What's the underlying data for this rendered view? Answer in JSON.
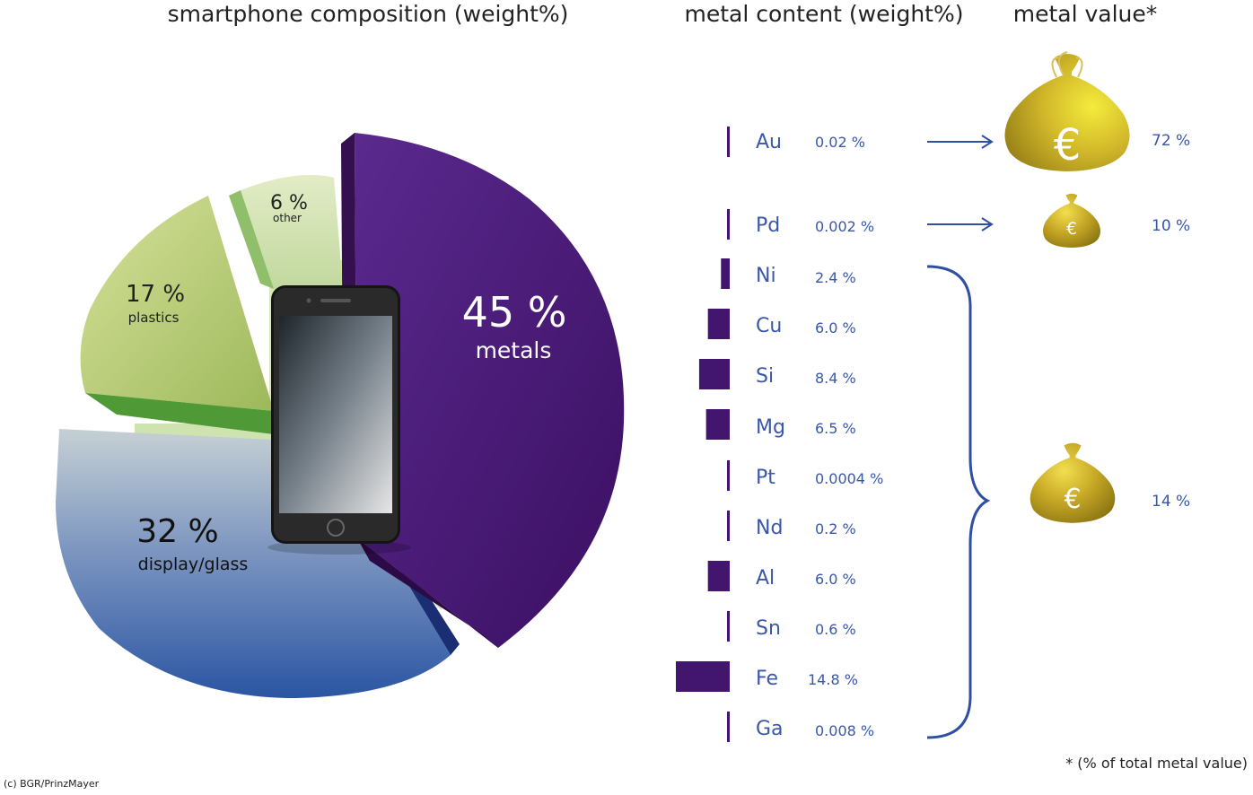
{
  "headings": {
    "composition": "smartphone composition (weight%)",
    "metal_content": "metal content (weight%)",
    "metal_value": "metal value*"
  },
  "footnote": "* (% of total metal value)",
  "credit": "(c) BGR/PrinzMayer",
  "colors": {
    "metals": "#4a1a78",
    "display": "#3f62a8",
    "plastics": "#b8cc72",
    "other": "#c9dba4",
    "bar": "#42166f",
    "label_blue": "#2e4fa3",
    "gold": "#b59a1c"
  },
  "chart_data": [
    {
      "type": "pie",
      "title": "smartphone composition (weight%)",
      "slices": [
        {
          "percent_label": "45 %",
          "name": "metals",
          "value": 45,
          "color": "#4a1a78"
        },
        {
          "percent_label": "32 %",
          "name": "display/glass",
          "value": 32,
          "color": "#3f62a8"
        },
        {
          "percent_label": "17 %",
          "name": "plastics",
          "value": 17,
          "color": "#b8cc72"
        },
        {
          "percent_label": "6 %",
          "name": "other",
          "value": 6,
          "color": "#c9dba4"
        }
      ]
    },
    {
      "type": "bar",
      "title": "metal content (weight%)",
      "orientation": "horizontal",
      "categories": [
        "Au",
        "Pd",
        "Ni",
        "Cu",
        "Si",
        "Mg",
        "Pt",
        "Nd",
        "Al",
        "Sn",
        "Fe",
        "Ga"
      ],
      "values": [
        0.02,
        0.002,
        2.4,
        6.0,
        8.4,
        6.5,
        0.0004,
        0.2,
        6.0,
        0.6,
        14.8,
        0.008
      ],
      "labels": [
        "0.02 %",
        "0.002 %",
        "2.4 %",
        "6.0 %",
        "8.4 %",
        "6.5 %",
        "0.0004 %",
        "0.2 %",
        "6.0 %",
        "0.6 %",
        "14.8 %",
        "0.008 %"
      ]
    },
    {
      "type": "table",
      "title": "metal value*",
      "rows": [
        {
          "metals": [
            "Au"
          ],
          "value": 72,
          "label": "72 %"
        },
        {
          "metals": [
            "Pd"
          ],
          "value": 10,
          "label": "10 %"
        },
        {
          "metals": [
            "Ni",
            "Cu",
            "Si",
            "Mg",
            "Pt",
            "Nd",
            "Al",
            "Sn",
            "Fe",
            "Ga"
          ],
          "value": 14,
          "label": "14 %"
        }
      ],
      "icon": "euro-money-bag-icon"
    }
  ]
}
